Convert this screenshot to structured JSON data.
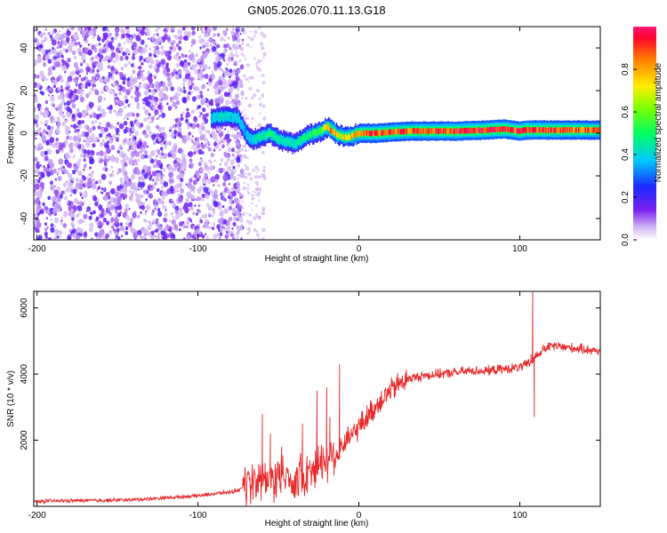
{
  "title": "GN05.2026.070.11.13.G18",
  "chart_data": [
    {
      "type": "heatmap",
      "name": "spectrogram",
      "xlabel": "Height of straight line (km)",
      "ylabel": "Frequency (Hz)",
      "xlim": [
        -202,
        150
      ],
      "ylim": [
        -50,
        50
      ],
      "xticks": [
        -200,
        -100,
        0,
        100
      ],
      "yticks": [
        -40,
        -20,
        0,
        20,
        40
      ],
      "colorbar": {
        "label": "Normalized spectral amplitude",
        "range": [
          0,
          1
        ],
        "ticks": [
          0.0,
          0.2,
          0.4,
          0.6,
          0.8
        ],
        "tick_labels": [
          "0.0",
          "0.2",
          "0.4",
          "0.6",
          "0.8"
        ]
      },
      "noise_region": {
        "x_range": [
          -202,
          -72
        ],
        "amplitude_range": [
          0.05,
          0.2
        ]
      },
      "signal_track": {
        "x": [
          -92,
          -85,
          -80,
          -75,
          -72,
          -68,
          -62,
          -56,
          -50,
          -45,
          -40,
          -36,
          -32,
          -28,
          -24,
          -20,
          -18,
          -15,
          -12,
          -8,
          -4,
          0,
          10,
          30,
          60,
          80,
          90,
          95,
          100,
          103,
          110,
          130,
          150
        ],
        "frequency": [
          7,
          8,
          8,
          7,
          2,
          -3,
          -2,
          0,
          -3,
          -4,
          -5,
          -3,
          -1,
          0,
          1,
          3,
          2,
          0,
          -1,
          -2,
          -1,
          0,
          0,
          1,
          1,
          1.5,
          2,
          1.5,
          1,
          1.5,
          1.5,
          1.5,
          1.5
        ],
        "amplitude": [
          0.35,
          0.45,
          0.4,
          0.4,
          0.35,
          0.4,
          0.45,
          0.5,
          0.45,
          0.45,
          0.45,
          0.5,
          0.5,
          0.55,
          0.6,
          0.75,
          0.85,
          0.8,
          0.7,
          0.75,
          0.8,
          0.85,
          0.9,
          0.9,
          0.95,
          0.95,
          0.98,
          0.9,
          0.95,
          0.98,
          0.95,
          0.9,
          0.85
        ]
      }
    },
    {
      "type": "line",
      "name": "snr",
      "xlabel": "Height of straight line (km)",
      "ylabel": "SNR (10 * v/v)",
      "xlim": [
        -202,
        150
      ],
      "ylim": [
        0,
        6500
      ],
      "xticks": [
        -200,
        -100,
        0,
        100
      ],
      "yticks": [
        2000,
        4000,
        6000
      ],
      "color": "#e8292b",
      "series": [
        {
          "name": "SNR",
          "x": [
            -202,
            -180,
            -160,
            -140,
            -120,
            -100,
            -90,
            -80,
            -70,
            -65,
            -60,
            -55,
            -50,
            -45,
            -40,
            -35,
            -30,
            -25,
            -20,
            -15,
            -10,
            -5,
            0,
            5,
            10,
            15,
            20,
            25,
            30,
            40,
            50,
            60,
            70,
            80,
            90,
            100,
            105,
            108,
            110,
            115,
            120,
            130,
            140,
            150
          ],
          "y": [
            150,
            170,
            180,
            200,
            260,
            320,
            380,
            430,
            550,
            700,
            850,
            800,
            900,
            850,
            800,
            950,
            1100,
            1300,
            1450,
            1600,
            1800,
            2100,
            2400,
            2700,
            3000,
            3300,
            3500,
            3700,
            3850,
            3950,
            4000,
            4050,
            4100,
            4100,
            4150,
            4200,
            4300,
            4400,
            4550,
            4750,
            4850,
            4800,
            4750,
            4700
          ]
        }
      ],
      "spikes": [
        {
          "x": -60,
          "y": 2800
        },
        {
          "x": -55,
          "y": 2200
        },
        {
          "x": -48,
          "y": 1800
        },
        {
          "x": -35,
          "y": 2500
        },
        {
          "x": -26,
          "y": 3500
        },
        {
          "x": -20,
          "y": 3600
        },
        {
          "x": -18,
          "y": 2700
        },
        {
          "x": -12,
          "y": 4300
        },
        {
          "x": 107,
          "y": 4600
        },
        {
          "x": 108,
          "y": 6500
        },
        {
          "x": 109,
          "y": 2700
        }
      ]
    }
  ]
}
